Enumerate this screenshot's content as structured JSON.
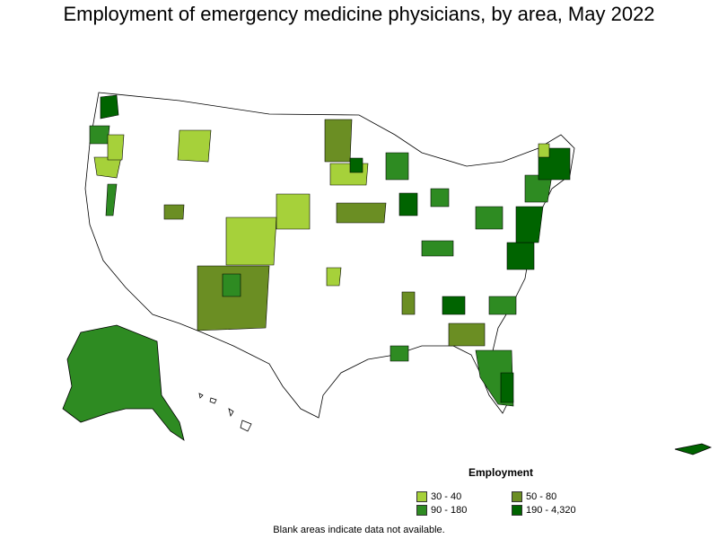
{
  "title": "Employment of emergency medicine physicians, by area, May 2022",
  "legend": {
    "title": "Employment",
    "items": [
      {
        "label": "30 - 40",
        "color": "#a6d13a"
      },
      {
        "label": "50 - 80",
        "color": "#6b8e23"
      },
      {
        "label": "90 - 180",
        "color": "#2e8b22"
      },
      {
        "label": "190 - 4,320",
        "color": "#006400"
      }
    ]
  },
  "note": "Blank areas indicate data not available.",
  "colors": {
    "border": "#000000",
    "nodata": "#ffffff"
  }
}
